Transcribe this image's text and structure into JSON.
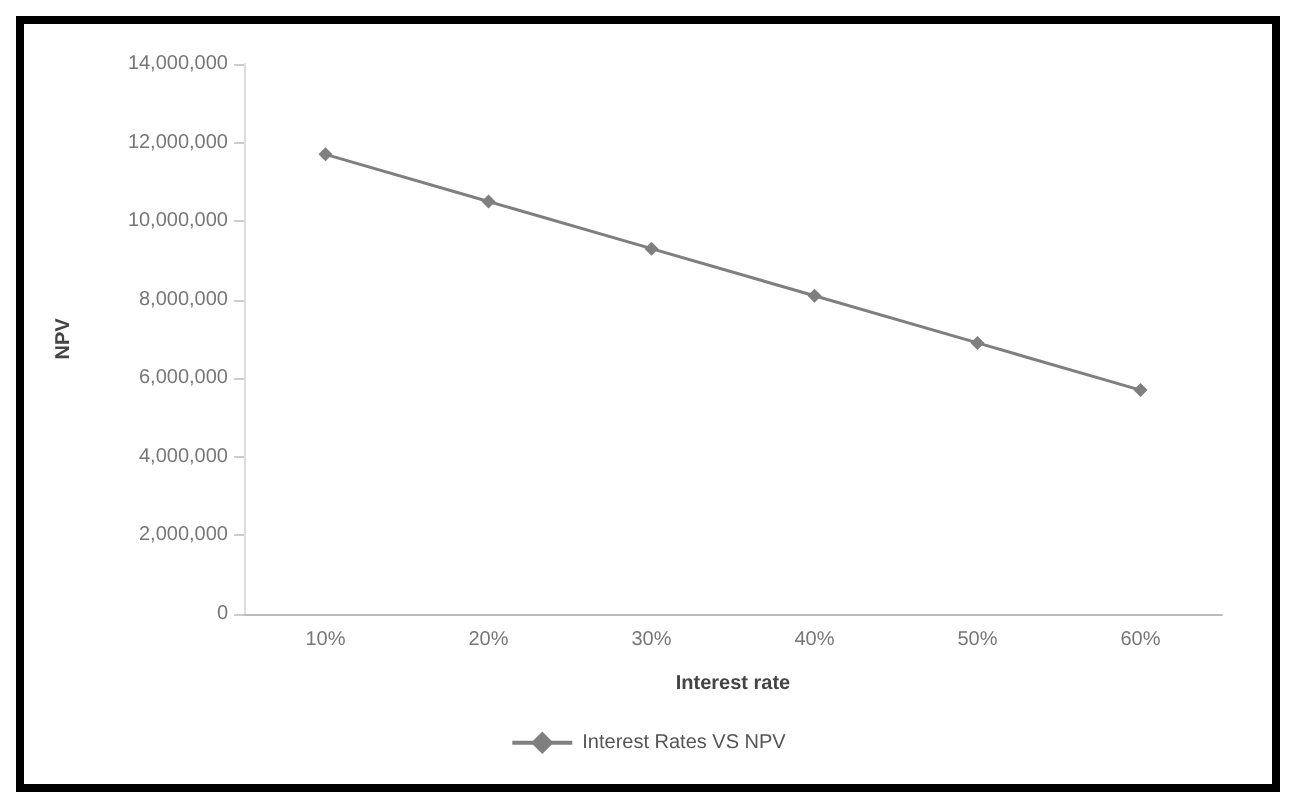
{
  "chart_data": {
    "type": "line",
    "xlabel": "Interest rate",
    "ylabel": "NPV",
    "categories": [
      "10%",
      "20%",
      "30%",
      "40%",
      "50%",
      "60%"
    ],
    "series": [
      {
        "name": "Interest Rates VS NPV",
        "color": "#7f7f7f",
        "values": [
          11700000,
          10500000,
          9300000,
          8100000,
          6900000,
          5700000
        ]
      }
    ],
    "ylim": [
      0,
      14000000
    ],
    "yticks": [
      0,
      {
        "value": 2000000,
        "label": "2,000,000"
      },
      {
        "value": 4000000,
        "label": "4,000,000"
      },
      {
        "value": 6000000,
        "label": "6,000,000"
      },
      {
        "value": 8000000,
        "label": "8,000,000"
      },
      {
        "value": 10000000,
        "label": "10,000,000"
      },
      {
        "value": 12000000,
        "label": "12,000,000"
      },
      {
        "value": 14000000,
        "label": "14,000,000"
      }
    ],
    "grid": false,
    "legend": "bottom",
    "marker": "diamond",
    "line_style": "solid"
  }
}
